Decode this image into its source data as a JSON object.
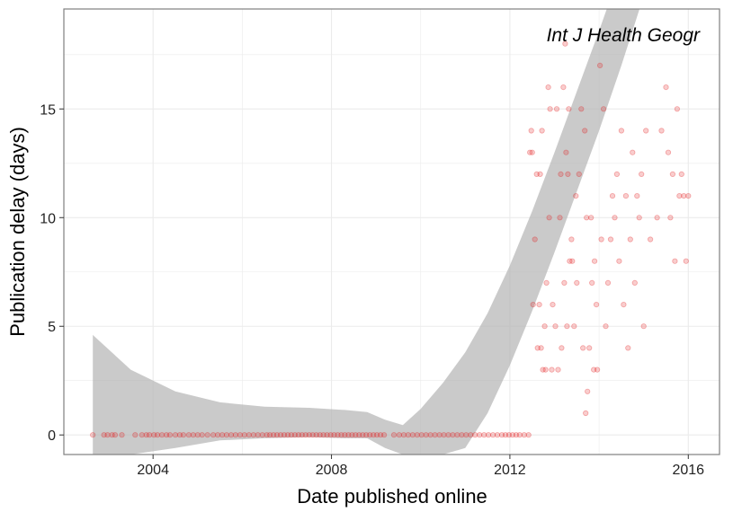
{
  "chart_data": {
    "type": "scatter",
    "title": "",
    "annotation": "Int J Health Geogr",
    "xlabel": "Date published online",
    "ylabel": "Publication delay (days)",
    "xlim": [
      2002.0,
      2016.7
    ],
    "ylim": [
      -0.9,
      19.6
    ],
    "x_ticks": [
      2004,
      2008,
      2012,
      2016
    ],
    "x_tick_labels": [
      "2004",
      "2008",
      "2012",
      "2016"
    ],
    "y_ticks": [
      0,
      5,
      10,
      15
    ],
    "y_tick_labels": [
      "0",
      "5",
      "10",
      "15"
    ],
    "grid": true,
    "legend": "none",
    "colors": {
      "points": "#e31a1c",
      "ribbon": "#b3b3b3",
      "grid": "#ebebeb",
      "border": "#7f7f7f"
    },
    "series": [
      {
        "points": [
          [
            2002.65,
            0
          ],
          [
            2002.9,
            0
          ],
          [
            2002.98,
            0
          ],
          [
            2003.08,
            0
          ],
          [
            2003.15,
            0
          ],
          [
            2003.3,
            0
          ],
          [
            2003.6,
            0
          ],
          [
            2003.75,
            0
          ],
          [
            2003.85,
            0
          ],
          [
            2003.92,
            0
          ],
          [
            2004.02,
            0
          ],
          [
            2004.1,
            0
          ],
          [
            2004.2,
            0
          ],
          [
            2004.3,
            0
          ],
          [
            2004.38,
            0
          ],
          [
            2004.5,
            0
          ],
          [
            2004.6,
            0
          ],
          [
            2004.68,
            0
          ],
          [
            2004.8,
            0
          ],
          [
            2004.9,
            0
          ],
          [
            2005.0,
            0
          ],
          [
            2005.1,
            0
          ],
          [
            2005.22,
            0
          ],
          [
            2005.35,
            0
          ],
          [
            2005.45,
            0
          ],
          [
            2005.55,
            0
          ],
          [
            2005.65,
            0
          ],
          [
            2005.75,
            0
          ],
          [
            2005.85,
            0
          ],
          [
            2005.95,
            0
          ],
          [
            2006.05,
            0
          ],
          [
            2006.15,
            0
          ],
          [
            2006.25,
            0
          ],
          [
            2006.35,
            0
          ],
          [
            2006.45,
            0
          ],
          [
            2006.55,
            0
          ],
          [
            2006.62,
            0
          ],
          [
            2006.7,
            0
          ],
          [
            2006.78,
            0
          ],
          [
            2006.86,
            0
          ],
          [
            2006.94,
            0
          ],
          [
            2007.02,
            0
          ],
          [
            2007.1,
            0
          ],
          [
            2007.18,
            0
          ],
          [
            2007.26,
            0
          ],
          [
            2007.34,
            0
          ],
          [
            2007.42,
            0
          ],
          [
            2007.5,
            0
          ],
          [
            2007.58,
            0
          ],
          [
            2007.66,
            0
          ],
          [
            2007.74,
            0
          ],
          [
            2007.82,
            0
          ],
          [
            2007.9,
            0
          ],
          [
            2007.98,
            0
          ],
          [
            2008.06,
            0
          ],
          [
            2008.14,
            0
          ],
          [
            2008.22,
            0
          ],
          [
            2008.3,
            0
          ],
          [
            2008.38,
            0
          ],
          [
            2008.46,
            0
          ],
          [
            2008.54,
            0
          ],
          [
            2008.62,
            0
          ],
          [
            2008.7,
            0
          ],
          [
            2008.78,
            0
          ],
          [
            2008.86,
            0
          ],
          [
            2008.94,
            0
          ],
          [
            2009.02,
            0
          ],
          [
            2009.1,
            0
          ],
          [
            2009.18,
            0
          ],
          [
            2009.4,
            0
          ],
          [
            2009.52,
            0
          ],
          [
            2009.62,
            0
          ],
          [
            2009.72,
            0
          ],
          [
            2009.82,
            0
          ],
          [
            2009.92,
            0
          ],
          [
            2010.02,
            0
          ],
          [
            2010.12,
            0
          ],
          [
            2010.22,
            0
          ],
          [
            2010.32,
            0
          ],
          [
            2010.42,
            0
          ],
          [
            2010.52,
            0
          ],
          [
            2010.62,
            0
          ],
          [
            2010.72,
            0
          ],
          [
            2010.82,
            0
          ],
          [
            2010.92,
            0
          ],
          [
            2011.02,
            0
          ],
          [
            2011.12,
            0
          ],
          [
            2011.22,
            0
          ],
          [
            2011.32,
            0
          ],
          [
            2011.42,
            0
          ],
          [
            2011.52,
            0
          ],
          [
            2011.62,
            0
          ],
          [
            2011.72,
            0
          ],
          [
            2011.82,
            0
          ],
          [
            2011.9,
            0
          ],
          [
            2011.98,
            0
          ],
          [
            2012.06,
            0
          ],
          [
            2012.14,
            0
          ],
          [
            2012.22,
            0
          ],
          [
            2012.32,
            0
          ],
          [
            2012.42,
            0
          ],
          [
            2012.45,
            13
          ],
          [
            2012.48,
            14
          ],
          [
            2012.5,
            13
          ],
          [
            2012.52,
            6
          ],
          [
            2012.56,
            9
          ],
          [
            2012.6,
            12
          ],
          [
            2012.62,
            4
          ],
          [
            2012.66,
            6
          ],
          [
            2012.68,
            12
          ],
          [
            2012.7,
            4
          ],
          [
            2012.72,
            14
          ],
          [
            2012.74,
            3
          ],
          [
            2012.78,
            5
          ],
          [
            2012.8,
            3
          ],
          [
            2012.82,
            7
          ],
          [
            2012.86,
            16
          ],
          [
            2012.88,
            10
          ],
          [
            2012.9,
            15
          ],
          [
            2012.94,
            3
          ],
          [
            2012.96,
            6
          ],
          [
            2013.02,
            5
          ],
          [
            2013.05,
            15
          ],
          [
            2013.08,
            3
          ],
          [
            2013.12,
            10
          ],
          [
            2013.14,
            12
          ],
          [
            2013.16,
            4
          ],
          [
            2013.2,
            16
          ],
          [
            2013.22,
            7
          ],
          [
            2013.24,
            18
          ],
          [
            2013.26,
            13
          ],
          [
            2013.28,
            5
          ],
          [
            2013.3,
            12
          ],
          [
            2013.32,
            15
          ],
          [
            2013.34,
            8
          ],
          [
            2013.38,
            9
          ],
          [
            2013.4,
            8
          ],
          [
            2013.44,
            5
          ],
          [
            2013.48,
            11
          ],
          [
            2013.5,
            7
          ],
          [
            2013.55,
            12
          ],
          [
            2013.6,
            15
          ],
          [
            2013.64,
            4
          ],
          [
            2013.68,
            14
          ],
          [
            2013.7,
            1
          ],
          [
            2013.72,
            10
          ],
          [
            2013.74,
            2
          ],
          [
            2013.78,
            4
          ],
          [
            2013.82,
            10
          ],
          [
            2013.84,
            7
          ],
          [
            2013.88,
            3
          ],
          [
            2013.9,
            8
          ],
          [
            2013.94,
            6
          ],
          [
            2013.96,
            3
          ],
          [
            2014.02,
            17
          ],
          [
            2014.05,
            9
          ],
          [
            2014.1,
            15
          ],
          [
            2014.15,
            5
          ],
          [
            2014.2,
            7
          ],
          [
            2014.26,
            9
          ],
          [
            2014.3,
            11
          ],
          [
            2014.35,
            10
          ],
          [
            2014.4,
            12
          ],
          [
            2014.45,
            8
          ],
          [
            2014.5,
            14
          ],
          [
            2014.55,
            6
          ],
          [
            2014.6,
            11
          ],
          [
            2014.65,
            4
          ],
          [
            2014.7,
            9
          ],
          [
            2014.75,
            13
          ],
          [
            2014.8,
            7
          ],
          [
            2014.85,
            11
          ],
          [
            2014.9,
            10
          ],
          [
            2014.95,
            12
          ],
          [
            2015.0,
            5
          ],
          [
            2015.05,
            14
          ],
          [
            2015.15,
            9
          ],
          [
            2015.3,
            10
          ],
          [
            2015.4,
            14
          ],
          [
            2015.5,
            16
          ],
          [
            2015.55,
            13
          ],
          [
            2015.6,
            10
          ],
          [
            2015.65,
            12
          ],
          [
            2015.7,
            8
          ],
          [
            2015.75,
            15
          ],
          [
            2015.8,
            11
          ],
          [
            2015.85,
            12
          ],
          [
            2015.9,
            11
          ],
          [
            2015.95,
            8
          ],
          [
            2016.0,
            11
          ]
        ]
      }
    ],
    "ribbon": {
      "x": [
        2002.65,
        2003.5,
        2004.5,
        2005.5,
        2006.5,
        2007.5,
        2008.3,
        2008.8,
        2009.2,
        2009.6,
        2010.0,
        2010.5,
        2011.0,
        2011.5,
        2012.0,
        2012.5,
        2013.0,
        2013.5,
        2014.0,
        2014.5,
        2015.0,
        2015.5,
        2016.0
      ],
      "upper": [
        4.6,
        3.0,
        2.0,
        1.5,
        1.3,
        1.25,
        1.15,
        1.05,
        0.7,
        0.45,
        1.2,
        2.4,
        3.8,
        5.6,
        7.8,
        10.3,
        13.0,
        15.8,
        18.6,
        21.5,
        24.5,
        27.5,
        30.5
      ],
      "lower": [
        -0.9,
        -0.9,
        -0.6,
        -0.25,
        -0.15,
        -0.1,
        -0.15,
        -0.15,
        -0.6,
        -0.9,
        -0.9,
        -0.9,
        -0.6,
        1.0,
        3.2,
        5.7,
        8.4,
        11.2,
        14.0,
        17.0,
        20.2,
        23.5,
        26.8
      ]
    }
  }
}
